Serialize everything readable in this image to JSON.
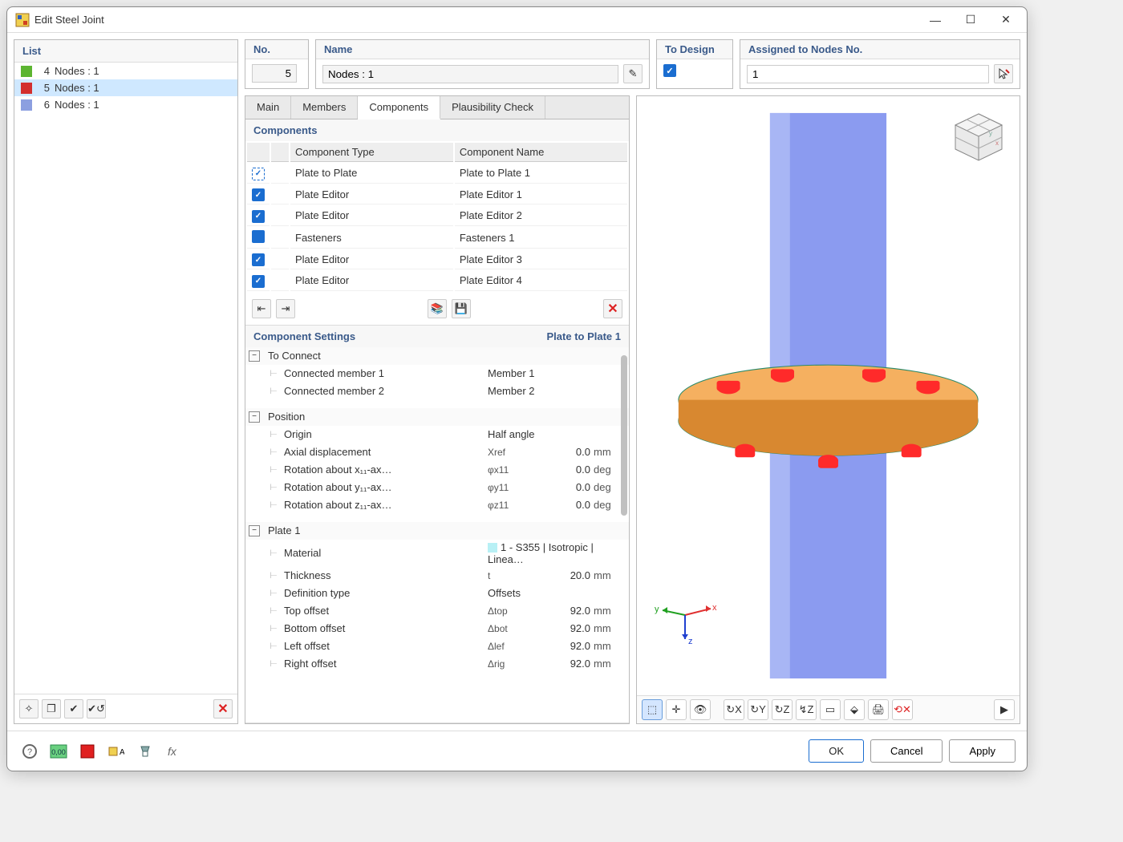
{
  "window": {
    "title": "Edit Steel Joint"
  },
  "list": {
    "title": "List",
    "items": [
      {
        "num": "4",
        "label": "Nodes : 1",
        "color": "#5cb531",
        "selected": false
      },
      {
        "num": "5",
        "label": "Nodes : 1",
        "color": "#d32f2f",
        "selected": true
      },
      {
        "num": "6",
        "label": "Nodes : 1",
        "color": "#8c9fe0",
        "selected": false
      }
    ]
  },
  "header": {
    "no_label": "No.",
    "no_value": "5",
    "name_label": "Name",
    "name_value": "Nodes : 1",
    "design_label": "To Design",
    "design_checked": true,
    "assigned_label": "Assigned to Nodes No.",
    "assigned_value": "1"
  },
  "tabs": {
    "items": [
      "Main",
      "Members",
      "Components",
      "Plausibility Check"
    ],
    "active": 2
  },
  "components": {
    "title": "Components",
    "col_type": "Component Type",
    "col_name": "Component Name",
    "rows": [
      {
        "checked": true,
        "dotted": true,
        "color": "#3f2ab5",
        "type": "Plate to Plate",
        "name": "Plate to Plate 1"
      },
      {
        "checked": true,
        "color": "#6fbf3f",
        "type": "Plate Editor",
        "name": "Plate Editor 1"
      },
      {
        "checked": true,
        "color": "#6fbf3f",
        "type": "Plate Editor",
        "name": "Plate Editor 2"
      },
      {
        "checked": false,
        "color": "#e6f0c0",
        "type": "Fasteners",
        "name": "Fasteners 1"
      },
      {
        "checked": true,
        "color": "#6fbf3f",
        "type": "Plate Editor",
        "name": "Plate Editor 3"
      },
      {
        "checked": true,
        "color": "#6fbf3f",
        "type": "Plate Editor",
        "name": "Plate Editor 4"
      }
    ]
  },
  "settings": {
    "title": "Component Settings",
    "subtitle": "Plate to Plate 1",
    "groups": [
      {
        "name": "To Connect",
        "rows": [
          {
            "label": "Connected member 1",
            "text": "Member 1"
          },
          {
            "label": "Connected member 2",
            "text": "Member 2"
          }
        ]
      },
      {
        "name": "Position",
        "rows": [
          {
            "label": "Origin",
            "text": "Half angle"
          },
          {
            "label": "Axial displacement",
            "sym": "Xref",
            "val": "0.0",
            "unit": "mm"
          },
          {
            "label": "Rotation about x₁₁-ax…",
            "sym": "φx11",
            "val": "0.0",
            "unit": "deg"
          },
          {
            "label": "Rotation about y₁₁-ax…",
            "sym": "φy11",
            "val": "0.0",
            "unit": "deg"
          },
          {
            "label": "Rotation about z₁₁-ax…",
            "sym": "φz11",
            "val": "0.0",
            "unit": "deg"
          }
        ]
      },
      {
        "name": "Plate 1",
        "rows": [
          {
            "label": "Material",
            "swatch": "#b8f0f5",
            "text": "1 - S355 | Isotropic | Linea…"
          },
          {
            "label": "Thickness",
            "sym": "t",
            "val": "20.0",
            "unit": "mm"
          },
          {
            "label": "Definition type",
            "text": "Offsets"
          },
          {
            "label": "Top offset",
            "sym": "Δtop",
            "val": "92.0",
            "unit": "mm"
          },
          {
            "label": "Bottom offset",
            "sym": "Δbot",
            "val": "92.0",
            "unit": "mm"
          },
          {
            "label": "Left offset",
            "sym": "Δlef",
            "val": "92.0",
            "unit": "mm"
          },
          {
            "label": "Right offset",
            "sym": "Δrig",
            "val": "92.0",
            "unit": "mm"
          }
        ]
      }
    ]
  },
  "viewer": {
    "column_color": "#8b9bf0",
    "column_highlight": "#a8b6f5",
    "plate_color": "#f0a048",
    "plate_edge": "#2a8a6a",
    "bolt_color": "#ff2a2a",
    "axis": {
      "x_color": "#e03030",
      "y_color": "#20a020",
      "z_color": "#2040d0",
      "x": "x",
      "y": "y",
      "z": "z"
    }
  },
  "buttons": {
    "ok": "OK",
    "cancel": "Cancel",
    "apply": "Apply"
  }
}
